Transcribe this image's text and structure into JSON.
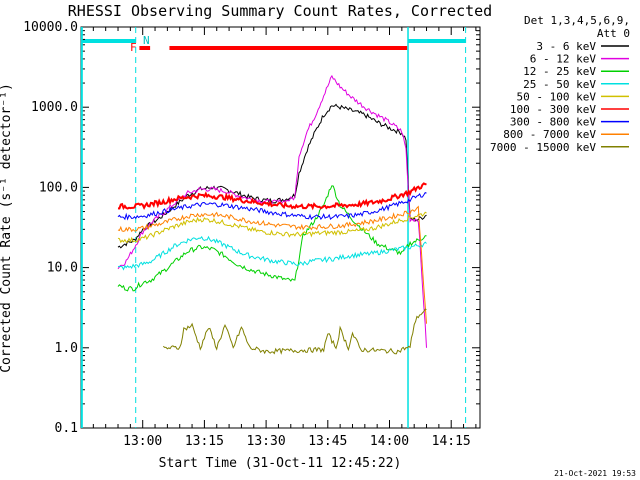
{
  "chart_data": {
    "type": "line",
    "title": "RHESSI Observing Summary Count Rates, Corrected",
    "xlabel": "Start Time (31-Oct-11 12:45:22)",
    "ylabel": "Corrected Count Rate (s⁻¹ detector⁻¹)",
    "y_scale": "log",
    "ylim": [
      0.1,
      10000
    ],
    "x_unit": "minutes after 12:45 UT",
    "xlim": [
      0,
      97
    ],
    "y_ticks": [
      "0.1",
      "1.0",
      "10.0",
      "100.0",
      "1000.0",
      "10000.0"
    ],
    "x_ticks": [
      {
        "label": "13:00",
        "t": 15
      },
      {
        "label": "13:15",
        "t": 30
      },
      {
        "label": "13:30",
        "t": 45
      },
      {
        "label": "13:45",
        "t": 60
      },
      {
        "label": "14:00",
        "t": 75
      },
      {
        "label": "14:15",
        "t": 90
      }
    ],
    "legend": {
      "header": [
        "Det 1,3,4,5,6,9,",
        "Att 0"
      ],
      "placement": "right"
    },
    "flags": {
      "F_label": "F",
      "N_label": "N"
    },
    "series": [
      {
        "name": "3 - 6 keV",
        "color": "#000000",
        "points": [
          [
            9,
            18
          ],
          [
            11,
            20
          ],
          [
            13,
            22
          ],
          [
            15,
            30
          ],
          [
            17,
            35
          ],
          [
            20,
            45
          ],
          [
            23,
            60
          ],
          [
            26,
            80
          ],
          [
            29,
            95
          ],
          [
            32,
            100
          ],
          [
            35,
            95
          ],
          [
            38,
            85
          ],
          [
            41,
            75
          ],
          [
            44,
            70
          ],
          [
            47,
            68
          ],
          [
            50,
            72
          ],
          [
            52,
            80
          ],
          [
            53,
            150
          ],
          [
            55,
            300
          ],
          [
            57,
            500
          ],
          [
            59,
            800
          ],
          [
            61,
            1050
          ],
          [
            63,
            1000
          ],
          [
            66,
            900
          ],
          [
            69,
            800
          ],
          [
            72,
            650
          ],
          [
            75,
            550
          ],
          [
            78,
            480
          ],
          [
            79,
            400
          ],
          [
            80,
            40
          ],
          [
            82,
            40
          ],
          [
            84,
            45
          ]
        ]
      },
      {
        "name": "6 - 12 keV",
        "color": "#e000e0",
        "points": [
          [
            9,
            10
          ],
          [
            11,
            12
          ],
          [
            13,
            18
          ],
          [
            15,
            28
          ],
          [
            17,
            36
          ],
          [
            20,
            48
          ],
          [
            23,
            65
          ],
          [
            26,
            85
          ],
          [
            29,
            95
          ],
          [
            32,
            95
          ],
          [
            35,
            90
          ],
          [
            38,
            80
          ],
          [
            41,
            72
          ],
          [
            44,
            68
          ],
          [
            47,
            65
          ],
          [
            50,
            68
          ],
          [
            52,
            75
          ],
          [
            53,
            250
          ],
          [
            55,
            500
          ],
          [
            57,
            800
          ],
          [
            59,
            1400
          ],
          [
            61,
            2400
          ],
          [
            63,
            1800
          ],
          [
            66,
            1300
          ],
          [
            69,
            1000
          ],
          [
            72,
            800
          ],
          [
            75,
            650
          ],
          [
            78,
            500
          ],
          [
            79,
            300
          ],
          [
            80,
            40
          ],
          [
            82,
            40
          ],
          [
            84,
            1.0
          ]
        ]
      },
      {
        "name": "12 - 25 keV",
        "color": "#00d000",
        "points": [
          [
            9,
            6
          ],
          [
            11,
            5.5
          ],
          [
            13,
            5.5
          ],
          [
            15,
            6.5
          ],
          [
            17,
            7
          ],
          [
            20,
            9
          ],
          [
            23,
            12
          ],
          [
            26,
            16
          ],
          [
            29,
            18
          ],
          [
            32,
            17
          ],
          [
            35,
            14
          ],
          [
            38,
            11
          ],
          [
            41,
            9.5
          ],
          [
            44,
            8.5
          ],
          [
            47,
            7.8
          ],
          [
            50,
            7
          ],
          [
            52,
            6.8
          ],
          [
            54,
            25
          ],
          [
            57,
            40
          ],
          [
            59,
            60
          ],
          [
            61,
            110
          ],
          [
            63,
            60
          ],
          [
            66,
            40
          ],
          [
            69,
            28
          ],
          [
            72,
            20
          ],
          [
            75,
            17
          ],
          [
            78,
            15
          ],
          [
            80,
            20
          ],
          [
            82,
            22
          ],
          [
            84,
            25
          ]
        ]
      },
      {
        "name": "25 - 50 keV",
        "color": "#00e0e0",
        "points": [
          [
            9,
            10
          ],
          [
            11,
            10
          ],
          [
            13,
            10.5
          ],
          [
            15,
            11
          ],
          [
            17,
            12
          ],
          [
            20,
            15
          ],
          [
            23,
            19
          ],
          [
            26,
            22
          ],
          [
            29,
            24
          ],
          [
            32,
            22
          ],
          [
            35,
            19
          ],
          [
            38,
            16
          ],
          [
            41,
            14
          ],
          [
            44,
            13
          ],
          [
            47,
            12
          ],
          [
            50,
            11.5
          ],
          [
            53,
            11
          ],
          [
            56,
            12
          ],
          [
            59,
            12.5
          ],
          [
            62,
            13
          ],
          [
            65,
            14
          ],
          [
            68,
            14.5
          ],
          [
            71,
            15
          ],
          [
            74,
            16
          ],
          [
            77,
            17
          ],
          [
            80,
            18
          ],
          [
            82,
            19
          ],
          [
            84,
            20
          ]
        ]
      },
      {
        "name": "50 - 100 keV",
        "color": "#d0c000",
        "points": [
          [
            9,
            22
          ],
          [
            11,
            22
          ],
          [
            13,
            22
          ],
          [
            15,
            23
          ],
          [
            17,
            25
          ],
          [
            20,
            29
          ],
          [
            23,
            33
          ],
          [
            26,
            37
          ],
          [
            29,
            40
          ],
          [
            32,
            39
          ],
          [
            35,
            36
          ],
          [
            38,
            33
          ],
          [
            41,
            30
          ],
          [
            44,
            28
          ],
          [
            47,
            27
          ],
          [
            50,
            26
          ],
          [
            53,
            26
          ],
          [
            56,
            26.5
          ],
          [
            59,
            27
          ],
          [
            62,
            27.5
          ],
          [
            65,
            28
          ],
          [
            68,
            29
          ],
          [
            71,
            31
          ],
          [
            74,
            34
          ],
          [
            77,
            38
          ],
          [
            80,
            42
          ],
          [
            82,
            45
          ],
          [
            84,
            48
          ]
        ]
      },
      {
        "name": "100 - 300 keV",
        "color": "#ff0000",
        "points": [
          [
            9,
            58
          ],
          [
            11,
            58
          ],
          [
            13,
            58
          ],
          [
            15,
            59
          ],
          [
            17,
            62
          ],
          [
            20,
            66
          ],
          [
            23,
            72
          ],
          [
            26,
            76
          ],
          [
            29,
            79
          ],
          [
            32,
            78
          ],
          [
            35,
            75
          ],
          [
            38,
            71
          ],
          [
            41,
            67
          ],
          [
            44,
            64
          ],
          [
            47,
            61
          ],
          [
            50,
            59
          ],
          [
            53,
            58
          ],
          [
            56,
            58
          ],
          [
            59,
            58
          ],
          [
            62,
            59
          ],
          [
            65,
            60
          ],
          [
            68,
            62
          ],
          [
            71,
            65
          ],
          [
            74,
            70
          ],
          [
            77,
            78
          ],
          [
            80,
            88
          ],
          [
            82,
            100
          ],
          [
            84,
            110
          ]
        ]
      },
      {
        "name": "300 - 800 keV",
        "color": "#0000ff",
        "points": [
          [
            9,
            43
          ],
          [
            11,
            43
          ],
          [
            13,
            43
          ],
          [
            15,
            44
          ],
          [
            17,
            46
          ],
          [
            20,
            50
          ],
          [
            23,
            54
          ],
          [
            26,
            58
          ],
          [
            29,
            61
          ],
          [
            32,
            62
          ],
          [
            35,
            60
          ],
          [
            38,
            57
          ],
          [
            41,
            54
          ],
          [
            44,
            51
          ],
          [
            47,
            48
          ],
          [
            50,
            46
          ],
          [
            53,
            44
          ],
          [
            56,
            43
          ],
          [
            59,
            43
          ],
          [
            62,
            43
          ],
          [
            65,
            44
          ],
          [
            68,
            46
          ],
          [
            71,
            50
          ],
          [
            74,
            55
          ],
          [
            77,
            62
          ],
          [
            80,
            70
          ],
          [
            82,
            78
          ],
          [
            84,
            85
          ]
        ]
      },
      {
        "name": "800 - 7000 keV",
        "color": "#ff8000",
        "points": [
          [
            9,
            30
          ],
          [
            11,
            30
          ],
          [
            13,
            30
          ],
          [
            15,
            31
          ],
          [
            17,
            33
          ],
          [
            20,
            36
          ],
          [
            23,
            40
          ],
          [
            26,
            44
          ],
          [
            29,
            46
          ],
          [
            32,
            46
          ],
          [
            35,
            44
          ],
          [
            38,
            41
          ],
          [
            41,
            38
          ],
          [
            44,
            36
          ],
          [
            47,
            34
          ],
          [
            50,
            33
          ],
          [
            53,
            32
          ],
          [
            56,
            32
          ],
          [
            59,
            32.5
          ],
          [
            62,
            33
          ],
          [
            65,
            34
          ],
          [
            68,
            36
          ],
          [
            71,
            38
          ],
          [
            74,
            41
          ],
          [
            77,
            45
          ],
          [
            80,
            50
          ],
          [
            82,
            55
          ],
          [
            84,
            2.0
          ]
        ]
      },
      {
        "name": "7000 - 15000 keV",
        "color": "#808000",
        "points": [
          [
            20,
            0.98
          ],
          [
            22,
            1.0
          ],
          [
            24,
            1.0
          ],
          [
            25,
            1.7
          ],
          [
            27,
            1.9
          ],
          [
            29,
            1.0
          ],
          [
            31,
            1.8
          ],
          [
            33,
            1.0
          ],
          [
            35,
            1.9
          ],
          [
            37,
            1.0
          ],
          [
            39,
            1.8
          ],
          [
            41,
            1.0
          ],
          [
            43,
            0.95
          ],
          [
            45,
            0.9
          ],
          [
            59,
            0.95
          ],
          [
            60,
            1.5
          ],
          [
            62,
            1.0
          ],
          [
            63,
            1.7
          ],
          [
            65,
            1.0
          ],
          [
            66,
            1.5
          ],
          [
            68,
            0.95
          ],
          [
            77,
            0.9
          ],
          [
            79,
            1.0
          ],
          [
            80,
            1.0
          ],
          [
            81,
            2.0
          ],
          [
            82,
            2.5
          ],
          [
            84,
            3.0
          ]
        ]
      }
    ]
  }
}
